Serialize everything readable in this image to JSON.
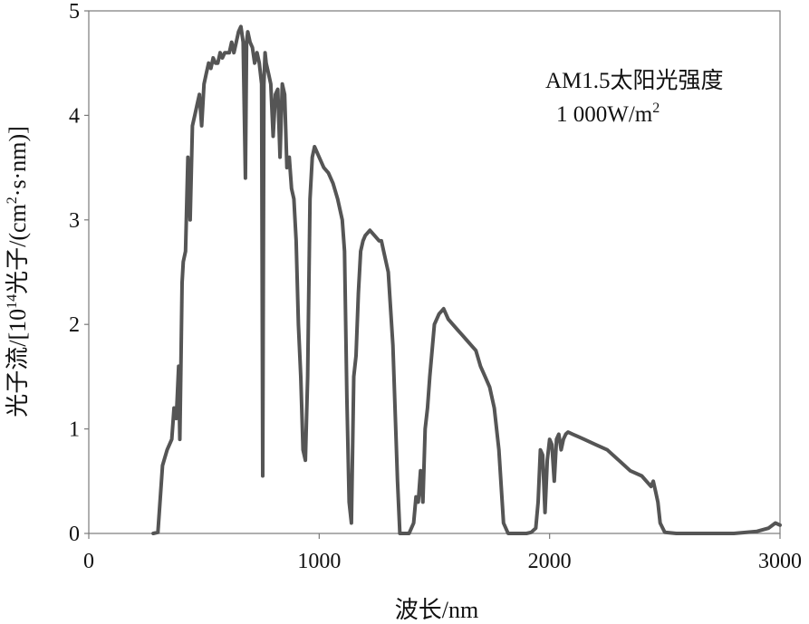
{
  "chart_data": {
    "type": "line",
    "title": "",
    "xlabel": "波长/nm",
    "ylabel_parts": {
      "prefix": "光子流/[10",
      "exp": "14",
      "middle": "光子/(cm",
      "exp2": "2",
      "suffix": "·s·nm)]"
    },
    "xlim": [
      0,
      3000
    ],
    "ylim": [
      0,
      5
    ],
    "x_ticks": [
      0,
      1000,
      2000,
      3000
    ],
    "y_ticks": [
      0,
      1,
      2,
      3,
      4,
      5
    ],
    "x_tick_labels": [
      "0",
      "1000",
      "2000",
      "3000"
    ],
    "y_tick_labels": [
      "0",
      "1",
      "2",
      "3",
      "4",
      "5"
    ],
    "annotation": {
      "line1": "AM1.5太阳光强度",
      "line2_prefix": "1 000W/m",
      "line2_exp": "2"
    },
    "series": [
      {
        "color": "#555555",
        "x": [
          280,
          300,
          320,
          340,
          360,
          370,
          380,
          390,
          395,
          400,
          405,
          410,
          420,
          430,
          440,
          450,
          460,
          470,
          480,
          490,
          500,
          510,
          520,
          530,
          540,
          550,
          560,
          570,
          580,
          590,
          600,
          610,
          620,
          630,
          640,
          650,
          660,
          670,
          680,
          685,
          690,
          700,
          710,
          720,
          730,
          740,
          750,
          755,
          760,
          765,
          770,
          780,
          790,
          800,
          810,
          820,
          830,
          840,
          850,
          860,
          870,
          880,
          890,
          900,
          910,
          920,
          930,
          940,
          950,
          960,
          970,
          980,
          990,
          1000,
          1020,
          1040,
          1060,
          1080,
          1100,
          1110,
          1120,
          1130,
          1140,
          1150,
          1160,
          1170,
          1180,
          1190,
          1200,
          1220,
          1240,
          1260,
          1270,
          1280,
          1300,
          1320,
          1340,
          1350,
          1360,
          1370,
          1380,
          1390,
          1400,
          1410,
          1420,
          1430,
          1440,
          1450,
          1460,
          1470,
          1480,
          1500,
          1520,
          1540,
          1560,
          1580,
          1600,
          1620,
          1640,
          1660,
          1680,
          1700,
          1720,
          1740,
          1760,
          1780,
          1800,
          1820,
          1840,
          1860,
          1880,
          1900,
          1920,
          1940,
          1950,
          1960,
          1970,
          1980,
          1990,
          2000,
          2010,
          2020,
          2030,
          2040,
          2050,
          2060,
          2070,
          2080,
          2100,
          2150,
          2200,
          2250,
          2300,
          2350,
          2400,
          2420,
          2440,
          2450,
          2460,
          2470,
          2480,
          2500,
          2550,
          2600,
          2700,
          2800,
          2900,
          2950,
          2980,
          3000
        ],
        "values": [
          0.0,
          0.01,
          0.65,
          0.8,
          0.9,
          1.2,
          1.1,
          1.6,
          0.9,
          1.6,
          2.4,
          2.6,
          2.7,
          3.6,
          3.0,
          3.9,
          4.0,
          4.1,
          4.2,
          3.9,
          4.3,
          4.4,
          4.5,
          4.45,
          4.55,
          4.5,
          4.5,
          4.6,
          4.55,
          4.6,
          4.6,
          4.6,
          4.7,
          4.6,
          4.7,
          4.8,
          4.85,
          4.7,
          3.4,
          4.7,
          4.8,
          4.7,
          4.65,
          4.5,
          4.6,
          4.5,
          4.3,
          0.55,
          4.3,
          4.6,
          4.5,
          4.4,
          4.3,
          3.8,
          4.2,
          4.25,
          3.6,
          4.3,
          4.2,
          3.5,
          3.6,
          3.3,
          3.2,
          2.8,
          2.0,
          1.5,
          0.8,
          0.7,
          1.5,
          3.2,
          3.6,
          3.7,
          3.65,
          3.6,
          3.5,
          3.45,
          3.35,
          3.2,
          3.0,
          2.7,
          1.3,
          0.3,
          0.1,
          1.5,
          1.7,
          2.3,
          2.7,
          2.8,
          2.85,
          2.9,
          2.85,
          2.8,
          2.8,
          2.7,
          2.5,
          1.8,
          0.5,
          0.0,
          0.0,
          0.0,
          0.0,
          0.0,
          0.05,
          0.1,
          0.35,
          0.3,
          0.6,
          0.3,
          1.0,
          1.2,
          1.5,
          2.0,
          2.1,
          2.15,
          2.05,
          2.0,
          1.95,
          1.9,
          1.85,
          1.8,
          1.75,
          1.6,
          1.5,
          1.4,
          1.2,
          0.8,
          0.1,
          0.0,
          0.0,
          0.0,
          0.0,
          0.0,
          0.01,
          0.05,
          0.3,
          0.8,
          0.75,
          0.2,
          0.7,
          0.9,
          0.85,
          0.5,
          0.9,
          0.95,
          0.8,
          0.9,
          0.95,
          0.97,
          0.95,
          0.9,
          0.85,
          0.8,
          0.7,
          0.6,
          0.55,
          0.5,
          0.45,
          0.5,
          0.4,
          0.3,
          0.1,
          0.01,
          0.0,
          0.0,
          0.0,
          0.0,
          0.02,
          0.05,
          0.1,
          0.08
        ]
      }
    ]
  }
}
